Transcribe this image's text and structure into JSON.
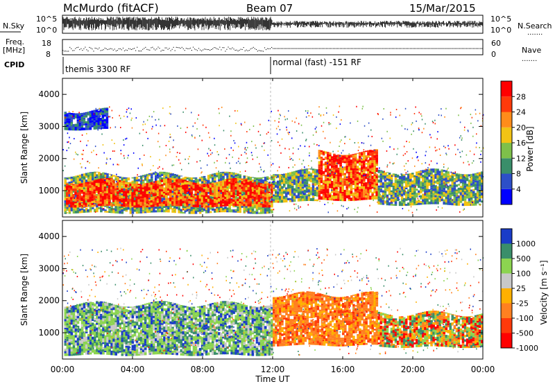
{
  "header": {
    "station": "McMurdo (fitACF)",
    "beam": "Beam 07",
    "date": "15/Mar/2015"
  },
  "top_panels": {
    "nsky_label": "N.Sky",
    "nsky_ticks": [
      "10^5",
      "10^0"
    ],
    "nsearch_label": "N.Search",
    "nsearch_ticks": [
      "10^5",
      "10^0"
    ],
    "freq_label_1": "Freq.",
    "freq_label_2": "[MHz]",
    "freq_ticks": [
      "18",
      "8"
    ],
    "nave_label": "Nave",
    "nave_ticks": [
      "60",
      "0"
    ],
    "cpid_label": "CPID",
    "cpid_modes": [
      "themis 3300 RF",
      "normal (fast) -151 RF"
    ],
    "dotted_marker": "......."
  },
  "chart_data": [
    {
      "type": "heatmap",
      "name": "power",
      "ylabel": "Slant Range [km]",
      "ylim": [
        180,
        4500
      ],
      "yticks": [
        1000,
        2000,
        3000,
        4000
      ],
      "xlim_hours": [
        0,
        24
      ],
      "colorbar_label": "Power [dB]",
      "colorbar_ticks": [
        "4",
        "8",
        "12",
        "16",
        "20",
        "24",
        "28"
      ],
      "colors": [
        "#0000ff",
        "#2d4fc8",
        "#3a8e6a",
        "#7ec04a",
        "#f2c314",
        "#ff8c1a",
        "#ff3a0a",
        "#ff0000"
      ],
      "regions": [
        {
          "t0": 0.1,
          "t1": 12.0,
          "r0": 300,
          "r1": 1500,
          "level": "medium"
        },
        {
          "t0": 0.2,
          "t1": 12.0,
          "r0": 500,
          "r1": 1300,
          "level": "high"
        },
        {
          "t0": 0.1,
          "t1": 2.6,
          "r0": 2900,
          "r1": 3500,
          "level": "low"
        },
        {
          "t0": 12.0,
          "t1": 14.6,
          "r0": 650,
          "r1": 1600,
          "level": "medium"
        },
        {
          "t0": 14.6,
          "t1": 18.0,
          "r0": 700,
          "r1": 2200,
          "level": "high"
        },
        {
          "t0": 18.0,
          "t1": 24.0,
          "r0": 550,
          "r1": 1600,
          "level": "medium"
        }
      ]
    },
    {
      "type": "heatmap",
      "name": "velocity",
      "ylabel": "Slant Range [km]",
      "ylim": [
        180,
        4500
      ],
      "yticks": [
        1000,
        2000,
        3000,
        4000
      ],
      "xlim_hours": [
        0,
        24
      ],
      "colorbar_label": "Velocity [m s⁻¹]",
      "colorbar_ticks": [
        "1000",
        "500",
        "100",
        "25",
        "-25",
        "-100",
        "-500",
        "-1000"
      ],
      "colors": [
        "#1a3cc8",
        "#3a8e6a",
        "#8cd450",
        "#c8c8c8",
        "#ffb000",
        "#ff8020",
        "#ff3a0a",
        "#ff0000"
      ],
      "regions": [
        {
          "t0": 0.1,
          "t1": 12.0,
          "r0": 300,
          "r1": 1900,
          "level": "positive"
        },
        {
          "t0": 12.0,
          "t1": 18.0,
          "r0": 600,
          "r1": 2200,
          "level": "negative"
        },
        {
          "t0": 18.0,
          "t1": 24.0,
          "r0": 550,
          "r1": 1600,
          "level": "mixed"
        }
      ]
    }
  ],
  "x_axis": {
    "ticks": [
      "00:00",
      "04:00",
      "08:00",
      "12:00",
      "16:00",
      "20:00",
      "00:00"
    ],
    "label": "Time UT"
  }
}
